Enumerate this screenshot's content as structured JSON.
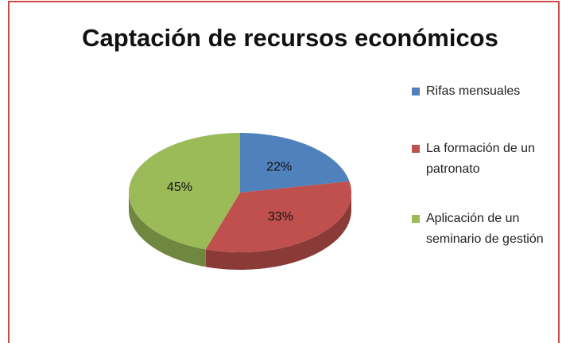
{
  "chart_data": {
    "type": "pie",
    "title": "Captación de recursos económicos",
    "categories": [
      "Rifas mensuales",
      "La formación de un patronato",
      "Aplicación de un seminario de gestión"
    ],
    "values": [
      22,
      33,
      45
    ],
    "value_labels": [
      "22%",
      "33%",
      "45%"
    ],
    "colors": [
      "#4f81bd",
      "#c0504d",
      "#9bbb59"
    ],
    "legend": "right"
  }
}
